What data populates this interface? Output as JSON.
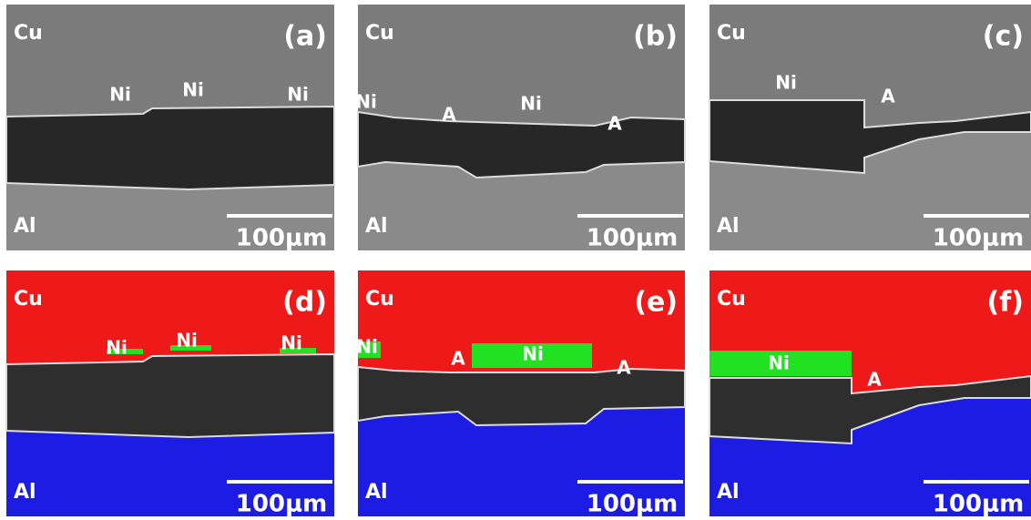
{
  "panels": [
    {
      "label": "(a)",
      "top_material": "Cu",
      "bottom_material": "Al",
      "annotations": [
        "Ni",
        "Ni",
        "Ni"
      ],
      "scale_bar": "100μm"
    },
    {
      "label": "(b)",
      "top_material": "Cu",
      "bottom_material": "Al",
      "annotations": [
        "Ni",
        "A",
        "Ni",
        "A"
      ],
      "scale_bar": "100μm"
    },
    {
      "label": "(c)",
      "top_material": "Cu",
      "bottom_material": "Al",
      "annotations": [
        "Ni",
        "A"
      ],
      "scale_bar": "100μm"
    },
    {
      "label": "(d)",
      "top_material": "Cu",
      "bottom_material": "Al",
      "annotations": [
        "Ni",
        "Ni",
        "Ni"
      ],
      "scale_bar": "100μm"
    },
    {
      "label": "(e)",
      "top_material": "Cu",
      "bottom_material": "Al",
      "annotations": [
        "Ni",
        "A",
        "Ni",
        "A"
      ],
      "scale_bar": "100μm"
    },
    {
      "label": "(f)",
      "top_material": "Cu",
      "bottom_material": "Al",
      "annotations": [
        "Ni",
        "A"
      ],
      "scale_bar": "100μm"
    }
  ]
}
